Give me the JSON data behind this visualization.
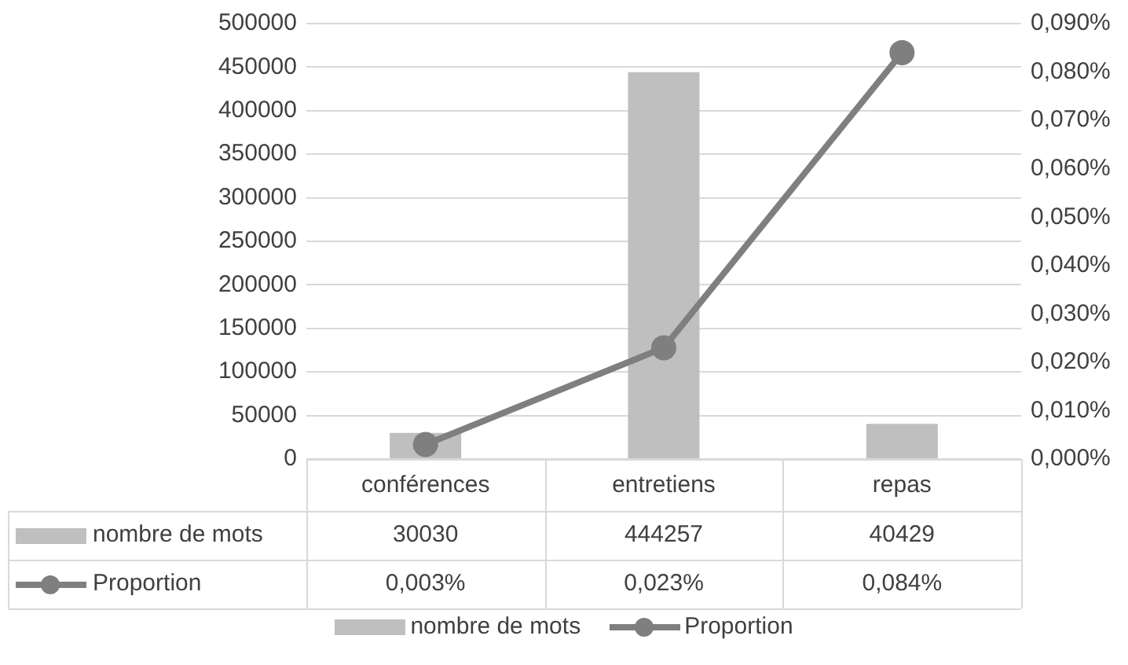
{
  "chart_data": {
    "type": "bar",
    "categories": [
      "conférences",
      "entretiens",
      "repas"
    ],
    "series": [
      {
        "name": "nombre de mots",
        "color": "#bfbfbf",
        "values": [
          30030,
          444257,
          40429
        ],
        "value_labels": [
          "30030",
          "444257",
          "40429"
        ]
      },
      {
        "name": "Proportion",
        "type": "line",
        "axis": "y2",
        "color": "#7f7f7f",
        "marker": "circle",
        "values": [
          0.003,
          0.023,
          0.084
        ],
        "value_labels": [
          "0,003%",
          "0,023%",
          "0,084%"
        ]
      }
    ],
    "ylim": [
      0,
      500000
    ],
    "yticks": [
      0,
      50000,
      100000,
      150000,
      200000,
      250000,
      300000,
      350000,
      400000,
      450000,
      500000
    ],
    "y2lim": [
      0,
      0.09
    ],
    "y2ticks": [
      {
        "value": 0,
        "label": "0,000%"
      },
      {
        "value": 0.01,
        "label": "0,010%"
      },
      {
        "value": 0.02,
        "label": "0,020%"
      },
      {
        "value": 0.03,
        "label": "0,030%"
      },
      {
        "value": 0.04,
        "label": "0,040%"
      },
      {
        "value": 0.05,
        "label": "0,050%"
      },
      {
        "value": 0.06,
        "label": "0,060%"
      },
      {
        "value": 0.07,
        "label": "0,070%"
      },
      {
        "value": 0.08,
        "label": "0,080%"
      },
      {
        "value": 0.09,
        "label": "0,090%"
      }
    ],
    "grid": "y",
    "legend": "bottom"
  }
}
